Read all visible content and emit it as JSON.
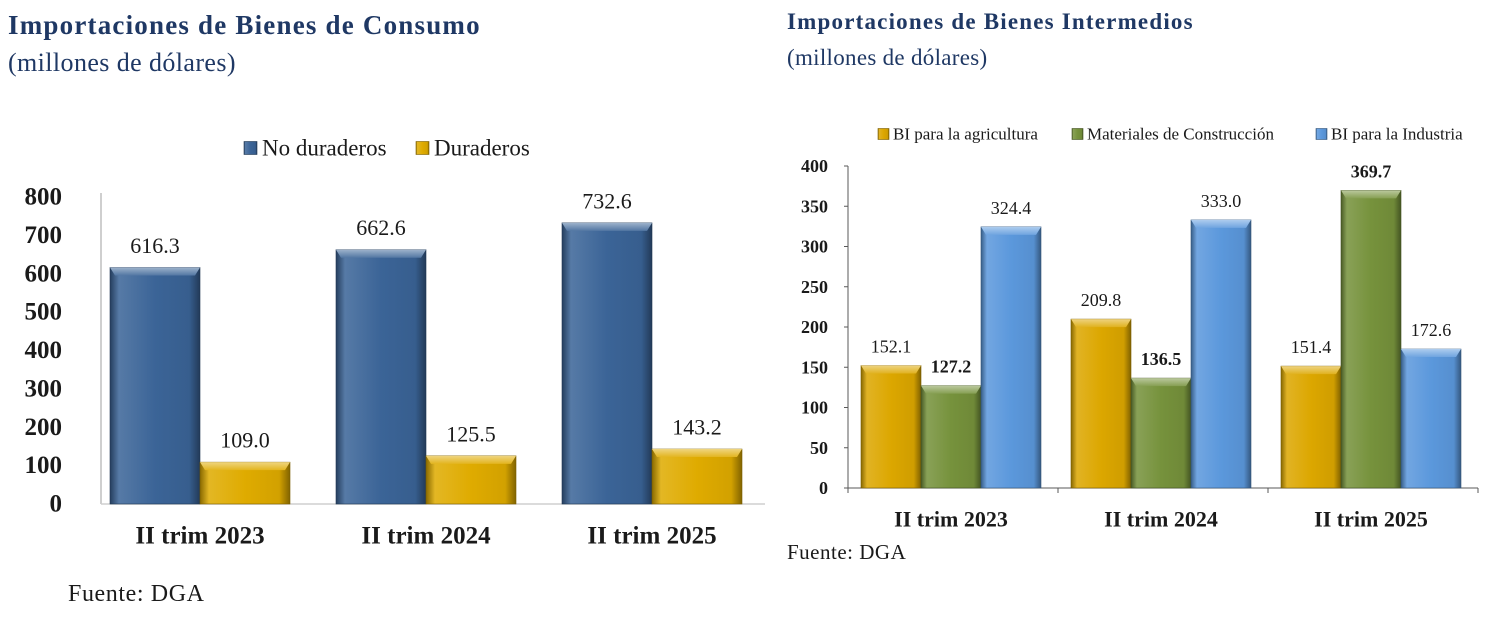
{
  "colors": {
    "title": "#1f3864"
  },
  "chart_data": [
    {
      "type": "bar",
      "title": "Importaciones de Bienes de Consumo",
      "subtitle": "(millones de dólares)",
      "source": "Fuente: DGA",
      "categories": [
        "II trim 2023",
        "II trim 2024",
        "II trim 2025"
      ],
      "series": [
        {
          "name": "No duraderos",
          "values": [
            616.3,
            662.6,
            732.6
          ],
          "color": "#3b6497"
        },
        {
          "name": "Duraderos",
          "values": [
            109.0,
            125.5,
            143.2
          ],
          "color": "#dfab00"
        }
      ],
      "ylim": [
        0,
        800
      ],
      "yticks": [
        0,
        100,
        200,
        300,
        400,
        500,
        600,
        700,
        800
      ],
      "legend": "top",
      "grid": false
    },
    {
      "type": "bar",
      "title": "Importaciones de Bienes Intermedios",
      "subtitle": "(millones de dólares)",
      "source": "Fuente: DGA",
      "categories": [
        "II trim 2023",
        "II trim 2024",
        "II trim 2025"
      ],
      "series": [
        {
          "name": "BI para la agricultura",
          "values": [
            152.1,
            209.8,
            151.4
          ],
          "color": "#dca700"
        },
        {
          "name": "Materiales de Construcción",
          "values": [
            127.2,
            136.5,
            369.7
          ],
          "color": "#76923c"
        },
        {
          "name": "BI para la Industria",
          "values": [
            324.4,
            333.0,
            172.6
          ],
          "color": "#5b98dc"
        }
      ],
      "ylim": [
        0,
        400
      ],
      "yticks": [
        0,
        50,
        100,
        150,
        200,
        250,
        300,
        350,
        400
      ],
      "legend": "top-right",
      "grid": false
    }
  ]
}
